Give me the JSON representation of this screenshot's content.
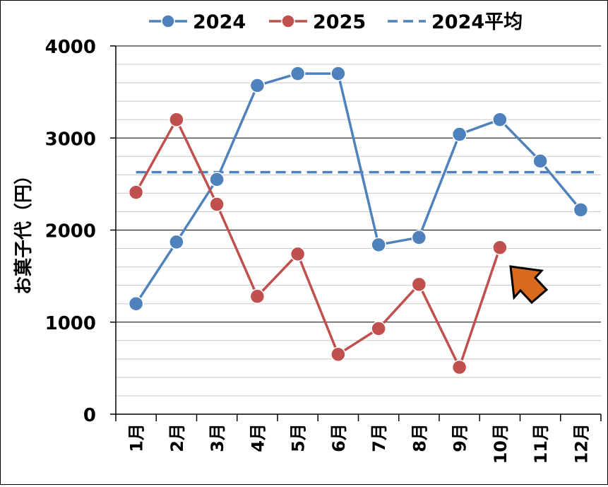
{
  "chart_data": {
    "type": "line",
    "categories": [
      "1月",
      "2月",
      "3月",
      "4月",
      "5月",
      "6月",
      "7月",
      "8月",
      "9月",
      "10月",
      "11月",
      "12月"
    ],
    "series": [
      {
        "name": "2024",
        "values": [
          1200,
          1870,
          2550,
          3570,
          3700,
          3700,
          1840,
          1920,
          3040,
          3200,
          2750,
          2220
        ],
        "color": "#4F81BD"
      },
      {
        "name": "2025",
        "values": [
          2410,
          3200,
          2280,
          1280,
          1740,
          650,
          930,
          1410,
          510,
          1810,
          null,
          null
        ],
        "color": "#C0504D"
      }
    ],
    "reference_lines": [
      {
        "name": "2024平均",
        "value": 2629,
        "style": "dashed",
        "color": "#4F81BD"
      }
    ],
    "ylabel": "お菓子代（円）",
    "xlabel": "",
    "ylim": [
      0,
      4000
    ],
    "yticks": [
      0,
      1000,
      2000,
      3000,
      4000
    ],
    "grid": true,
    "legend_position": "top",
    "annotation": {
      "type": "arrow",
      "color": "#D9691C",
      "points_to": "10月"
    }
  }
}
